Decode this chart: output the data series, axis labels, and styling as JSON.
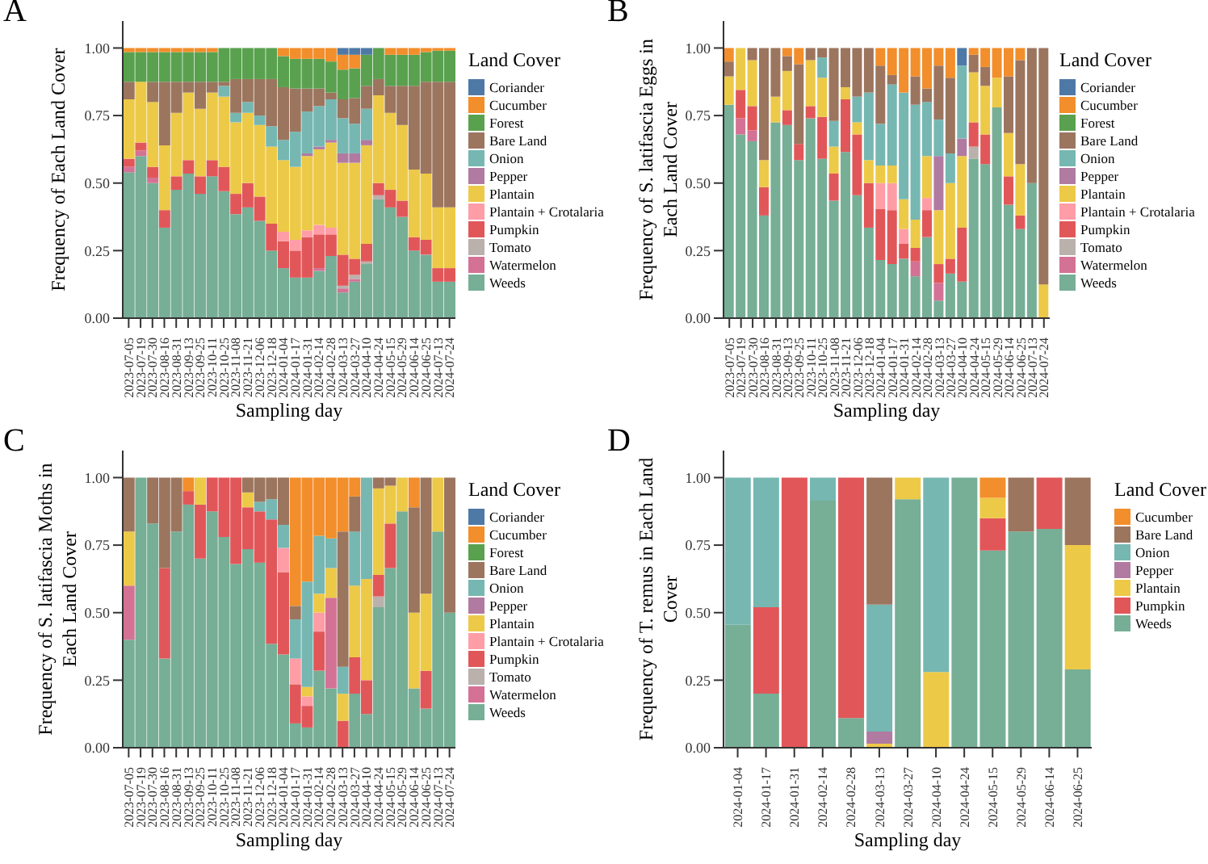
{
  "chart_data": [
    {
      "type": "bar",
      "stacked": true,
      "title": "A",
      "xlabel": "Sampling day",
      "ylabel": "Frequency of Each Land Cover",
      "legend_title": "Land Cover",
      "legend": "right",
      "ylim": [
        0,
        1.1
      ],
      "yticks": [
        {
          "value": 0,
          "label": "0.00"
        },
        {
          "value": 0.25,
          "label": "0.25"
        },
        {
          "value": 0.5,
          "label": "0.50"
        },
        {
          "value": 0.75,
          "label": "0.75"
        },
        {
          "value": 1,
          "label": "1.00"
        }
      ],
      "categories": [
        "2023-07-05",
        "2023-07-19",
        "2023-07-30",
        "2023-08-16",
        "2023-08-31",
        "2023-09-13",
        "2023-09-25",
        "2023-10-11",
        "2023-10-25",
        "2023-11-08",
        "2023-11-21",
        "2023-12-06",
        "2023-12-18",
        "2024-01-04",
        "2024-01-17",
        "2024-01-31",
        "2024-02-14",
        "2024-02-28",
        "2024-03-13",
        "2024-03-27",
        "2024-04-10",
        "2024-04-24",
        "2024-05-15",
        "2024-05-29",
        "2024-06-14",
        "2024-06-25",
        "2024-07-13",
        "2024-07-24"
      ],
      "series": [
        {
          "name": "Weeds",
          "color": "#76ae96",
          "values": [
            0.54,
            0.6,
            0.5,
            0.335,
            0.475,
            0.535,
            0.46,
            0.525,
            0.47,
            0.385,
            0.41,
            0.36,
            0.25,
            0.185,
            0.15,
            0.15,
            0.175,
            0.23,
            0.095,
            0.135,
            0.2,
            0.44,
            0.41,
            0.375,
            0.25,
            0.235,
            0.135,
            0.135
          ]
        },
        {
          "name": "Watermelon",
          "color": "#d37295",
          "values": [
            0.02,
            0.02,
            0.02,
            null,
            null,
            null,
            null,
            null,
            null,
            null,
            null,
            null,
            null,
            null,
            null,
            null,
            0.01,
            null,
            0.015,
            0.01,
            null,
            null,
            null,
            null,
            null,
            null,
            null,
            null
          ]
        },
        {
          "name": "Tomato",
          "color": "#bab0ac",
          "values": [
            null,
            null,
            null,
            null,
            null,
            null,
            null,
            null,
            null,
            null,
            null,
            null,
            null,
            null,
            null,
            null,
            null,
            null,
            0.01,
            0.015,
            0.01,
            0.015,
            null,
            null,
            null,
            null,
            null,
            null
          ]
        },
        {
          "name": "Pumpkin",
          "color": "#e15759",
          "values": [
            0.03,
            0.03,
            0.04,
            0.065,
            0.05,
            0.05,
            0.065,
            0.06,
            0.09,
            0.075,
            0.09,
            0.09,
            0.1,
            0.1,
            0.1,
            0.15,
            0.125,
            0.08,
            0.115,
            0.06,
            0.065,
            0.045,
            0.065,
            0.06,
            0.05,
            0.055,
            0.05,
            0.05
          ]
        },
        {
          "name": "Plantain + Crotalaria",
          "color": "#ff9da7",
          "values": [
            null,
            null,
            null,
            null,
            null,
            null,
            null,
            null,
            null,
            null,
            null,
            null,
            null,
            0.035,
            0.04,
            0.025,
            0.035,
            0.025,
            null,
            null,
            null,
            null,
            null,
            null,
            null,
            null,
            null,
            null
          ]
        },
        {
          "name": "Plantain",
          "color": "#edc948",
          "values": [
            0.22,
            0.225,
            0.24,
            0.24,
            0.235,
            0.25,
            0.25,
            0.25,
            0.26,
            0.265,
            0.26,
            0.265,
            0.285,
            0.265,
            0.27,
            0.275,
            0.28,
            0.315,
            0.34,
            0.355,
            0.365,
            0.325,
            0.285,
            0.28,
            0.25,
            0.245,
            0.225,
            0.225
          ]
        },
        {
          "name": "Pepper",
          "color": "#b07aa1",
          "values": [
            null,
            null,
            null,
            null,
            null,
            null,
            null,
            null,
            null,
            null,
            null,
            null,
            null,
            null,
            null,
            0.01,
            0.01,
            0.01,
            0.035,
            0.035,
            0.02,
            null,
            null,
            null,
            null,
            null,
            null,
            null
          ]
        },
        {
          "name": "Onion",
          "color": "#76b7b2",
          "values": [
            null,
            null,
            null,
            null,
            null,
            null,
            null,
            null,
            0.04,
            0.035,
            0.04,
            0.035,
            0.075,
            0.075,
            0.13,
            0.155,
            0.15,
            0.15,
            0.13,
            0.11,
            0.115,
            null,
            null,
            null,
            null,
            null,
            null,
            null
          ]
        },
        {
          "name": "Bare Land",
          "color": "#9c755f",
          "values": [
            0.065,
            null,
            0.075,
            0.235,
            0.115,
            0.04,
            0.1,
            0.04,
            0.015,
            0.125,
            0.085,
            0.135,
            0.175,
            0.195,
            0.16,
            0.085,
            0.065,
            0.025,
            0.07,
            0.095,
            0.085,
            0.06,
            0.1,
            0.145,
            0.31,
            0.34,
            0.465,
            0.465
          ]
        },
        {
          "name": "Forest",
          "color": "#59a14f",
          "values": [
            0.11,
            0.11,
            0.11,
            0.11,
            0.11,
            0.11,
            0.11,
            0.11,
            0.125,
            0.115,
            0.115,
            0.115,
            0.115,
            0.115,
            0.11,
            0.11,
            0.11,
            0.115,
            0.11,
            0.11,
            0.115,
            0.115,
            0.115,
            0.115,
            0.115,
            0.11,
            0.115,
            0.115
          ]
        },
        {
          "name": "Cucumber",
          "color": "#f28e2b",
          "values": [
            0.015,
            0.015,
            0.015,
            0.015,
            0.015,
            0.015,
            0.015,
            0.015,
            null,
            null,
            null,
            null,
            null,
            0.03,
            0.04,
            0.04,
            0.04,
            0.05,
            0.055,
            0.05,
            null,
            null,
            0.025,
            0.025,
            0.025,
            0.015,
            0.01,
            0.01
          ]
        },
        {
          "name": "Coriander",
          "color": "#4e79a7",
          "values": [
            null,
            null,
            null,
            null,
            null,
            null,
            null,
            null,
            null,
            null,
            null,
            null,
            null,
            null,
            null,
            null,
            null,
            null,
            0.025,
            0.025,
            0.025,
            null,
            null,
            null,
            null,
            null,
            null,
            null
          ]
        }
      ]
    },
    {
      "type": "bar",
      "stacked": true,
      "title": "B",
      "xlabel": "Sampling day",
      "ylabel": "Frequency of S. latifascia Eggs in Each Land Cover",
      "legend_title": "Land Cover",
      "legend": "right",
      "ylim": [
        0,
        1.1
      ],
      "yticks": [
        {
          "value": 0,
          "label": "0.00"
        },
        {
          "value": 0.25,
          "label": "0.25"
        },
        {
          "value": 0.5,
          "label": "0.50"
        },
        {
          "value": 0.75,
          "label": "0.75"
        },
        {
          "value": 1,
          "label": "1.00"
        }
      ],
      "categories": [
        "2023-07-05",
        "2023-07-19",
        "2023-07-30",
        "2023-08-16",
        "2023-08-31",
        "2023-09-13",
        "2023-09-25",
        "2023-10-11",
        "2023-10-25",
        "2023-11-08",
        "2023-11-21",
        "2023-12-06",
        "2023-12-18",
        "2024-01-04",
        "2024-01-17",
        "2024-01-31",
        "2024-02-14",
        "2024-02-28",
        "2024-03-13",
        "2024-03-27",
        "2024-04-10",
        "2024-04-24",
        "2024-05-15",
        "2024-05-29",
        "2024-06-14",
        "2024-06-25",
        "2024-07-13",
        "2024-07-24"
      ],
      "series": [
        {
          "name": "Weeds",
          "color": "#76ae96",
          "values": [
            0.79,
            0.68,
            0.655,
            0.38,
            0.725,
            0.715,
            0.585,
            0.74,
            0.59,
            0.435,
            0.615,
            0.455,
            0.335,
            0.215,
            0.2,
            0.22,
            0.155,
            0.3,
            0.065,
            0.165,
            0.135,
            0.59,
            0.57,
            0.78,
            0.42,
            0.33,
            0.5,
            null
          ]
        },
        {
          "name": "Watermelon",
          "color": "#d37295",
          "values": [
            null,
            0.06,
            0.04,
            null,
            null,
            null,
            null,
            null,
            null,
            null,
            null,
            null,
            null,
            null,
            null,
            null,
            0.055,
            null,
            0.065,
            null,
            null,
            null,
            null,
            null,
            null,
            null,
            null,
            null
          ]
        },
        {
          "name": "Tomato",
          "color": "#bab0ac",
          "values": [
            null,
            null,
            null,
            null,
            null,
            null,
            null,
            null,
            null,
            null,
            null,
            null,
            null,
            null,
            null,
            null,
            null,
            null,
            null,
            null,
            null,
            0.045,
            null,
            null,
            null,
            null,
            null,
            null
          ]
        },
        {
          "name": "Pumpkin",
          "color": "#e15759",
          "values": [
            null,
            0.105,
            0.09,
            0.105,
            null,
            0.055,
            0.06,
            0.045,
            0.155,
            0.1,
            0.195,
            0.225,
            0.165,
            0.19,
            0.2,
            0.055,
            0.05,
            0.1,
            0.07,
            0.055,
            0.2,
            0.09,
            0.11,
            null,
            0.105,
            0.05,
            null,
            null
          ]
        },
        {
          "name": "Plantain + Crotalaria",
          "color": "#ff9da7",
          "values": [
            null,
            null,
            null,
            null,
            null,
            null,
            null,
            null,
            null,
            null,
            null,
            null,
            null,
            0.095,
            0.1,
            0.055,
            null,
            0.045,
            null,
            null,
            null,
            null,
            null,
            null,
            null,
            null,
            null,
            null
          ]
        },
        {
          "name": "Plantain",
          "color": "#edc948",
          "values": [
            0.105,
            0.155,
            0.17,
            0.1,
            0.095,
            0.145,
            null,
            0.17,
            0.145,
            0.1,
            0.045,
            0.045,
            0.085,
            0.065,
            0.065,
            0.11,
            0.105,
            0.155,
            0.2,
            0.28,
            0.265,
            0.185,
            0.18,
            0.11,
            0.16,
            0.19,
            null,
            0.125
          ]
        },
        {
          "name": "Pepper",
          "color": "#b07aa1",
          "values": [
            null,
            null,
            null,
            null,
            null,
            null,
            null,
            null,
            null,
            null,
            null,
            null,
            null,
            null,
            null,
            null,
            null,
            null,
            0.2,
            null,
            0.065,
            null,
            null,
            null,
            null,
            null,
            null,
            null
          ]
        },
        {
          "name": "Onion",
          "color": "#76b7b2",
          "values": [
            null,
            null,
            null,
            null,
            null,
            null,
            null,
            null,
            0.075,
            0.095,
            null,
            0.095,
            0.25,
            0.155,
            0.3,
            0.395,
            0.425,
            0.2,
            0.135,
            0.11,
            0.27,
            null,
            null,
            null,
            null,
            null,
            null,
            null
          ]
        },
        {
          "name": "Bare Land",
          "color": "#9c755f",
          "values": [
            0.055,
            null,
            0.045,
            0.415,
            0.18,
            0.055,
            0.295,
            0.045,
            0.035,
            0.27,
            0.145,
            0.18,
            0.165,
            0.215,
            0.035,
            null,
            0.105,
            0.05,
            0.2,
            0.28,
            null,
            0.065,
            0.07,
            null,
            0.21,
            0.385,
            0.5,
            0.875
          ]
        },
        {
          "name": "Forest",
          "color": "#59a14f",
          "values": [
            null,
            null,
            null,
            null,
            null,
            null,
            null,
            null,
            null,
            null,
            null,
            null,
            null,
            null,
            null,
            null,
            null,
            null,
            null,
            null,
            null,
            null,
            null,
            null,
            null,
            null,
            null,
            null
          ]
        },
        {
          "name": "Cucumber",
          "color": "#f28e2b",
          "values": [
            0.05,
            null,
            null,
            null,
            null,
            0.03,
            0.06,
            null,
            null,
            null,
            null,
            null,
            null,
            0.065,
            0.1,
            0.165,
            0.105,
            0.15,
            0.065,
            0.11,
            null,
            0.025,
            0.07,
            0.11,
            0.105,
            0.045,
            null,
            null
          ]
        },
        {
          "name": "Coriander",
          "color": "#4e79a7",
          "values": [
            null,
            null,
            null,
            null,
            null,
            null,
            null,
            null,
            null,
            null,
            null,
            null,
            null,
            null,
            null,
            null,
            null,
            null,
            null,
            null,
            0.065,
            null,
            null,
            null,
            null,
            null,
            null,
            null
          ]
        }
      ]
    },
    {
      "type": "bar",
      "stacked": true,
      "title": "C",
      "xlabel": "Sampling day",
      "ylabel": "Frequency of S. latifascia Moths in Each Land Cover",
      "legend_title": "Land Cover",
      "legend": "right",
      "ylim": [
        0,
        1.1
      ],
      "yticks": [
        {
          "value": 0,
          "label": "0.00"
        },
        {
          "value": 0.25,
          "label": "0.25"
        },
        {
          "value": 0.5,
          "label": "0.50"
        },
        {
          "value": 0.75,
          "label": "0.75"
        },
        {
          "value": 1,
          "label": "1.00"
        }
      ],
      "categories": [
        "2023-07-05",
        "2023-07-19",
        "2023-07-30",
        "2023-08-16",
        "2023-08-31",
        "2023-09-13",
        "2023-09-25",
        "2023-10-11",
        "2023-10-25",
        "2023-11-08",
        "2023-11-21",
        "2023-12-06",
        "2023-12-18",
        "2024-01-04",
        "2024-01-17",
        "2024-01-31",
        "2024-02-14",
        "2024-02-28",
        "2024-03-13",
        "2024-03-27",
        "2024-04-10",
        "2024-04-24",
        "2024-05-15",
        "2024-05-29",
        "2024-06-14",
        "2024-06-25",
        "2024-07-13",
        "2024-07-24"
      ],
      "series": [
        {
          "name": "Weeds",
          "color": "#76ae96",
          "values": [
            0.4,
            1,
            0.83,
            0.33,
            0.8,
            0.9,
            0.7,
            0.875,
            0.78,
            0.68,
            0.735,
            0.685,
            0.385,
            0.345,
            0.09,
            0.075,
            0.285,
            0.22,
            null,
            0.2,
            0.125,
            0.52,
            0.665,
            0.875,
            0.22,
            0.145,
            0.8,
            0.5
          ]
        },
        {
          "name": "Watermelon",
          "color": "#d37295",
          "values": [
            0.2,
            null,
            null,
            null,
            null,
            null,
            null,
            null,
            null,
            null,
            null,
            null,
            null,
            null,
            null,
            null,
            null,
            0.335,
            null,
            null,
            null,
            null,
            null,
            null,
            null,
            null,
            null,
            null
          ]
        },
        {
          "name": "Tomato",
          "color": "#bab0ac",
          "values": [
            null,
            null,
            null,
            null,
            null,
            null,
            null,
            null,
            null,
            null,
            null,
            null,
            null,
            null,
            null,
            null,
            null,
            null,
            null,
            null,
            null,
            0.04,
            null,
            null,
            null,
            null,
            null,
            null
          ]
        },
        {
          "name": "Pumpkin",
          "color": "#e15759",
          "values": [
            null,
            null,
            null,
            0.335,
            null,
            0.05,
            0.2,
            0.125,
            0.22,
            0.32,
            0.155,
            0.19,
            0.46,
            0.305,
            0.145,
            0.08,
            0.145,
            null,
            0.1,
            0.135,
            0.125,
            0.08,
            0.165,
            null,
            null,
            0.14,
            null,
            null
          ]
        },
        {
          "name": "Plantain + Crotalaria",
          "color": "#ff9da7",
          "values": [
            null,
            null,
            null,
            null,
            null,
            null,
            null,
            null,
            null,
            null,
            null,
            null,
            null,
            0.09,
            0.095,
            0.035,
            0.07,
            null,
            null,
            null,
            null,
            null,
            null,
            null,
            null,
            null,
            null,
            null
          ]
        },
        {
          "name": "Plantain",
          "color": "#edc948",
          "values": [
            0.2,
            null,
            null,
            null,
            null,
            null,
            0.1,
            null,
            null,
            null,
            0.055,
            null,
            null,
            null,
            null,
            0.035,
            0.07,
            0.11,
            0.1,
            0.265,
            0.375,
            0.32,
            0.14,
            0.125,
            0.28,
            0.285,
            0.2,
            null
          ]
        },
        {
          "name": "Pepper",
          "color": "#b07aa1",
          "values": [
            null,
            null,
            null,
            null,
            null,
            null,
            null,
            null,
            null,
            null,
            null,
            null,
            null,
            null,
            null,
            null,
            null,
            null,
            null,
            null,
            null,
            null,
            null,
            null,
            null,
            null,
            null,
            null
          ]
        },
        {
          "name": "Onion",
          "color": "#76b7b2",
          "values": [
            null,
            null,
            null,
            null,
            null,
            null,
            null,
            null,
            null,
            null,
            null,
            0.035,
            0.075,
            0.085,
            0.145,
            0.39,
            0.215,
            0.11,
            0.1,
            0.2,
            0.375,
            null,
            null,
            null,
            null,
            null,
            null,
            null
          ]
        },
        {
          "name": "Bare Land",
          "color": "#9c755f",
          "values": [
            0.2,
            null,
            0.17,
            0.335,
            0.2,
            null,
            null,
            null,
            null,
            null,
            0.055,
            0.09,
            0.08,
            0.175,
            0.05,
            null,
            null,
            null,
            0.5,
            0.13,
            null,
            0.04,
            0.03,
            null,
            0.39,
            0.43,
            null,
            0.5
          ]
        },
        {
          "name": "Forest",
          "color": "#59a14f",
          "values": [
            null,
            null,
            null,
            null,
            null,
            null,
            null,
            null,
            null,
            null,
            null,
            null,
            null,
            null,
            null,
            null,
            null,
            null,
            null,
            null,
            null,
            null,
            null,
            null,
            null,
            null,
            null,
            null
          ]
        },
        {
          "name": "Cucumber",
          "color": "#f28e2b",
          "values": [
            null,
            null,
            null,
            null,
            null,
            0.05,
            null,
            null,
            null,
            null,
            null,
            null,
            null,
            null,
            0.475,
            0.385,
            0.215,
            0.225,
            0.2,
            0.07,
            null,
            null,
            null,
            null,
            0.11,
            null,
            null,
            null
          ]
        },
        {
          "name": "Coriander",
          "color": "#4e79a7",
          "values": [
            null,
            null,
            null,
            null,
            null,
            null,
            null,
            null,
            null,
            null,
            null,
            null,
            null,
            null,
            null,
            null,
            null,
            null,
            null,
            null,
            null,
            null,
            null,
            null,
            null,
            null,
            null,
            null
          ]
        }
      ]
    },
    {
      "type": "bar",
      "stacked": true,
      "title": "D",
      "xlabel": "Sampling day",
      "ylabel": "Frequency of T. remus in Each Land Cover",
      "legend_title": "Land Cover",
      "legend": "right",
      "ylim": [
        0,
        1.1
      ],
      "yticks": [
        {
          "value": 0,
          "label": "0.00"
        },
        {
          "value": 0.25,
          "label": "0.25"
        },
        {
          "value": 0.5,
          "label": "0.50"
        },
        {
          "value": 0.75,
          "label": "0.75"
        },
        {
          "value": 1,
          "label": "1.00"
        }
      ],
      "categories": [
        "2024-01-04",
        "2024-01-17",
        "2024-01-31",
        "2024-02-14",
        "2024-02-28",
        "2024-03-13",
        "2024-03-27",
        "2024-04-10",
        "2024-04-24",
        "2024-05-15",
        "2024-05-29",
        "2024-06-14",
        "2024-06-25"
      ],
      "series": [
        {
          "name": "Weeds",
          "color": "#76ae96",
          "values": [
            0.455,
            0.2,
            null,
            0.915,
            0.11,
            null,
            0.92,
            null,
            1,
            0.73,
            0.8,
            0.81,
            0.29
          ]
        },
        {
          "name": "Pumpkin",
          "color": "#e15759",
          "values": [
            null,
            0.32,
            1,
            null,
            0.89,
            null,
            null,
            null,
            null,
            0.12,
            null,
            0.19,
            null
          ]
        },
        {
          "name": "Plantain",
          "color": "#edc948",
          "values": [
            null,
            null,
            null,
            null,
            null,
            0.015,
            0.08,
            0.28,
            null,
            0.075,
            null,
            null,
            0.46
          ]
        },
        {
          "name": "Pepper",
          "color": "#b07aa1",
          "values": [
            null,
            null,
            null,
            null,
            null,
            0.045,
            null,
            null,
            null,
            null,
            null,
            null,
            null
          ]
        },
        {
          "name": "Onion",
          "color": "#76b7b2",
          "values": [
            0.545,
            0.48,
            null,
            0.085,
            null,
            0.47,
            null,
            0.72,
            null,
            null,
            null,
            null,
            null
          ]
        },
        {
          "name": "Bare Land",
          "color": "#9c755f",
          "values": [
            null,
            null,
            null,
            null,
            null,
            0.47,
            null,
            null,
            null,
            null,
            0.2,
            null,
            0.25
          ]
        },
        {
          "name": "Cucumber",
          "color": "#f28e2b",
          "values": [
            null,
            null,
            null,
            null,
            null,
            null,
            null,
            null,
            null,
            0.075,
            null,
            null,
            null
          ]
        }
      ]
    }
  ]
}
